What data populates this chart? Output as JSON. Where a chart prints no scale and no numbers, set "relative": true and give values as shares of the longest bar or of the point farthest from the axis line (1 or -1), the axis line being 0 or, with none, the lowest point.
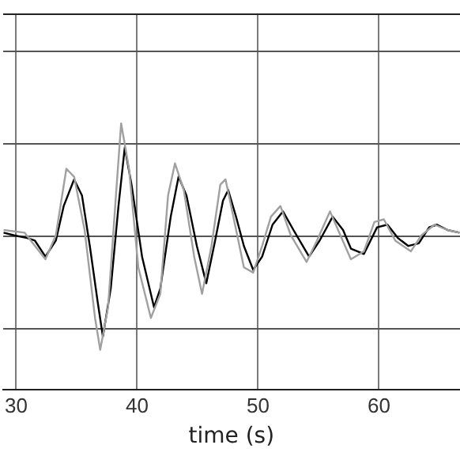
{
  "chart_data": {
    "type": "line",
    "xlabel": "time (s)",
    "relative": true,
    "xlim": [
      28.9,
      66.7
    ],
    "xticks": [
      30,
      40,
      50,
      60
    ],
    "grid": true,
    "legend": false,
    "marker": "none",
    "line_style": "solid",
    "series": [
      {
        "color": "#a0a0a0",
        "x": [
          28.96,
          30.69,
          32.42,
          33.28,
          34.15,
          34.79,
          35.66,
          36.52,
          36.95,
          37.6,
          38.25,
          38.68,
          39.33,
          40.1,
          41.14,
          41.92,
          42.56,
          43.13,
          43.86,
          44.72,
          45.37,
          46.15,
          46.88,
          47.31,
          47.96,
          48.83,
          49.6,
          50.34,
          51.07,
          51.85,
          52.71,
          54.01,
          54.87,
          55.95,
          56.81,
          57.68,
          58.76,
          59.62,
          60.4,
          61.35,
          62.64,
          63.51,
          64.59,
          65.66,
          66.66
        ],
        "values": [
          0.6,
          0.59,
          0.49,
          0.58,
          0.83,
          0.8,
          0.6,
          0.27,
          0.15,
          0.31,
          0.73,
          1,
          0.83,
          0.46,
          0.27,
          0.36,
          0.73,
          0.85,
          0.75,
          0.5,
          0.36,
          0.54,
          0.77,
          0.79,
          0.65,
          0.46,
          0.44,
          0.54,
          0.65,
          0.69,
          0.58,
          0.48,
          0.56,
          0.67,
          0.58,
          0.49,
          0.52,
          0.63,
          0.64,
          0.56,
          0.52,
          0.58,
          0.62,
          0.6,
          0.59
        ]
      },
      {
        "color": "#000000",
        "x": [
          28.96,
          29.83,
          30.91,
          31.55,
          32.42,
          33.28,
          33.93,
          34.79,
          35.44,
          36.09,
          36.74,
          37.17,
          37.82,
          38.46,
          38.98,
          39.54,
          40.41,
          41.4,
          41.92,
          42.78,
          43.43,
          44.08,
          44.94,
          45.72,
          46.45,
          47.1,
          47.53,
          48.18,
          48.83,
          49.6,
          50.34,
          51.2,
          52.06,
          52.93,
          54.22,
          55.09,
          56.17,
          57.03,
          57.68,
          58.76,
          59.84,
          60.7,
          61.56,
          62.43,
          63.29,
          64.15,
          64.8,
          65.66,
          66.66
        ],
        "values": [
          0.59,
          0.58,
          0.57,
          0.56,
          0.5,
          0.56,
          0.69,
          0.79,
          0.73,
          0.54,
          0.33,
          0.2,
          0.38,
          0.69,
          0.91,
          0.77,
          0.5,
          0.31,
          0.38,
          0.65,
          0.8,
          0.73,
          0.54,
          0.4,
          0.56,
          0.71,
          0.75,
          0.65,
          0.54,
          0.45,
          0.5,
          0.62,
          0.67,
          0.6,
          0.5,
          0.56,
          0.65,
          0.6,
          0.53,
          0.51,
          0.61,
          0.62,
          0.57,
          0.54,
          0.55,
          0.61,
          0.62,
          0.6,
          0.59
        ]
      }
    ]
  }
}
